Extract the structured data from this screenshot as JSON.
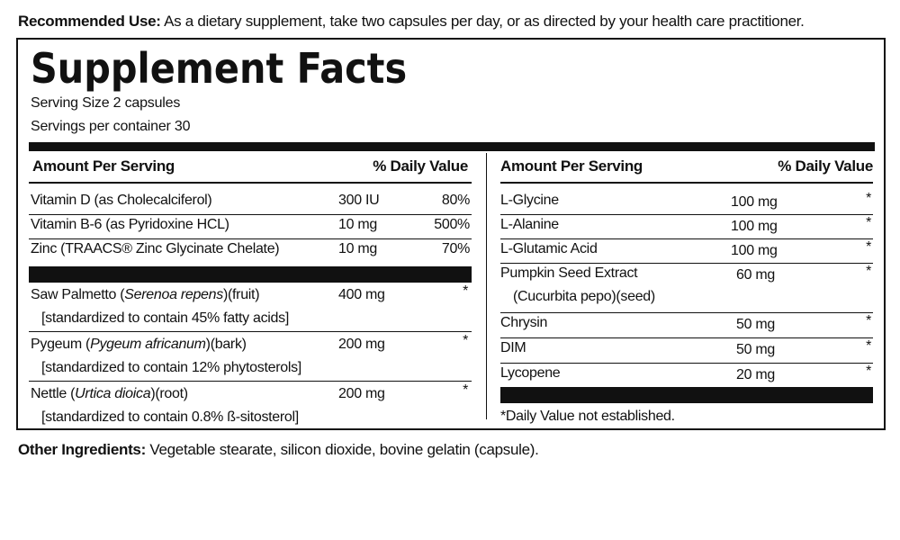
{
  "recommended_use": {
    "label": "Recommended Use:",
    "text": " As a dietary supplement, take two capsules per day, or as directed by your health care practitioner."
  },
  "facts": {
    "title": "Supplement Facts",
    "serving_size": "Serving Size 2 capsules",
    "servings_per_container": "Servings per container 30"
  },
  "left_column": {
    "header_amount": "Amount Per Serving",
    "header_dv": "% Daily Value",
    "vitamins": [
      {
        "name": "Vitamin D (as Cholecalciferol)",
        "amount": "300 IU",
        "dv": "80%"
      },
      {
        "name": "Vitamin B-6 (as Pyridoxine HCL)",
        "amount": "10 mg",
        "dv": "500%"
      },
      {
        "name": "Zinc (TRAACS® Zinc Glycinate Chelate)",
        "amount": "10 mg",
        "dv": "70%"
      }
    ],
    "herbs": [
      {
        "name_prefix": "Saw Palmetto (",
        "name_italic": "Serenoa repens",
        "name_suffix": ")(fruit)",
        "standardized": "[standardized to contain 45% fatty acids]",
        "amount": "400 mg",
        "dv": "*"
      },
      {
        "name_prefix": "Pygeum (",
        "name_italic": "Pygeum africanum",
        "name_suffix": ")(bark)",
        "standardized": "[standardized to contain 12% phytosterols]",
        "amount": "200 mg",
        "dv": "*"
      },
      {
        "name_prefix": "Nettle (",
        "name_italic": "Urtica dioica",
        "name_suffix": ")(root)",
        "standardized": "[standardized to contain 0.8% ß-sitosterol]",
        "amount": "200 mg",
        "dv": "*"
      }
    ]
  },
  "right_column": {
    "header_amount": "Amount Per Serving",
    "header_dv": "% Daily Value",
    "items": [
      {
        "name": "L-Glycine",
        "amount": "100 mg",
        "dv": "*"
      },
      {
        "name": "L-Alanine",
        "amount": "100 mg",
        "dv": "*"
      },
      {
        "name": "L-Glutamic Acid",
        "amount": "100 mg",
        "dv": "*"
      }
    ],
    "pumpkin": {
      "name": "Pumpkin Seed Extract",
      "sub": "(Cucurbita pepo)(seed)",
      "amount": "60 mg",
      "dv": "*"
    },
    "items2": [
      {
        "name": "Chrysin",
        "amount": "50 mg",
        "dv": "*"
      },
      {
        "name": "DIM",
        "amount": "50 mg",
        "dv": "*"
      },
      {
        "name": "Lycopene",
        "amount": "20 mg",
        "dv": "*"
      }
    ],
    "footnote": "*Daily Value not established."
  },
  "other_ingredients": {
    "label": "Other Ingredients:",
    "text": " Vegetable stearate, silicon dioxide, bovine gelatin (capsule)."
  }
}
